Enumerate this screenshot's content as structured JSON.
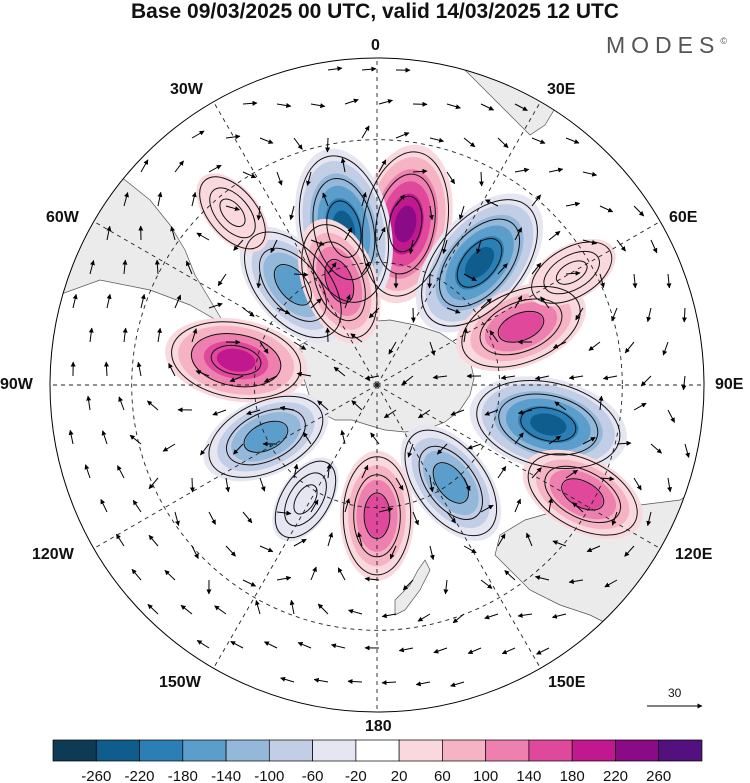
{
  "title": "Base 09/03/2025 00 UTC, valid 14/03/2025 12 UTC",
  "brand": "MODES",
  "brand_mark": "©",
  "longitude_labels": {
    "top": "0",
    "lon_30e": "30E",
    "lon_60e": "60E",
    "lon_90e": "90E",
    "lon_120e": "120E",
    "lon_150e": "150E",
    "bottom": "180",
    "lon_150w": "150W",
    "lon_120w": "120W",
    "lon_90w": "90W",
    "lon_60w": "60W",
    "lon_30w": "30W"
  },
  "reference_vector": {
    "label": "30"
  },
  "colorbar": {
    "ticks": [
      "-260",
      "-220",
      "-180",
      "-140",
      "-100",
      "-60",
      "-20",
      "20",
      "60",
      "100",
      "140",
      "180",
      "220",
      "260"
    ],
    "colors": [
      "#0d3a55",
      "#0f5d8c",
      "#2b7fb5",
      "#5b9ecb",
      "#94b8da",
      "#c2cde6",
      "#e6e6f2",
      "#ffffff",
      "#f9d9dd",
      "#f5b3c4",
      "#ee80b0",
      "#e0489c",
      "#c1188f",
      "#8b0a86",
      "#53107f"
    ]
  },
  "anomaly_centers": [
    {
      "lon": 10,
      "lat": -50,
      "value": 240
    },
    {
      "lon": -12,
      "lat": -51,
      "value": -250
    },
    {
      "lon": 40,
      "lat": -51,
      "value": -250
    },
    {
      "lon": 68,
      "lat": -52,
      "value": 170
    },
    {
      "lon": 103,
      "lat": -47,
      "value": -240
    },
    {
      "lon": 118,
      "lat": -33,
      "value": 150
    },
    {
      "lon": 143,
      "lat": -60,
      "value": -160
    },
    {
      "lon": 180,
      "lat": -58,
      "value": 150
    },
    {
      "lon": -148,
      "lat": -57,
      "value": -40
    },
    {
      "lon": -115,
      "lat": -60,
      "value": -160
    },
    {
      "lon": -80,
      "lat": -55,
      "value": 190
    },
    {
      "lon": -40,
      "lat": -58,
      "value": -170
    },
    {
      "lon": -20,
      "lat": -63,
      "value": 150
    },
    {
      "lon": -40,
      "lat": -35,
      "value": 40
    },
    {
      "lon": 60,
      "lat": -35,
      "value": 50
    }
  ]
}
